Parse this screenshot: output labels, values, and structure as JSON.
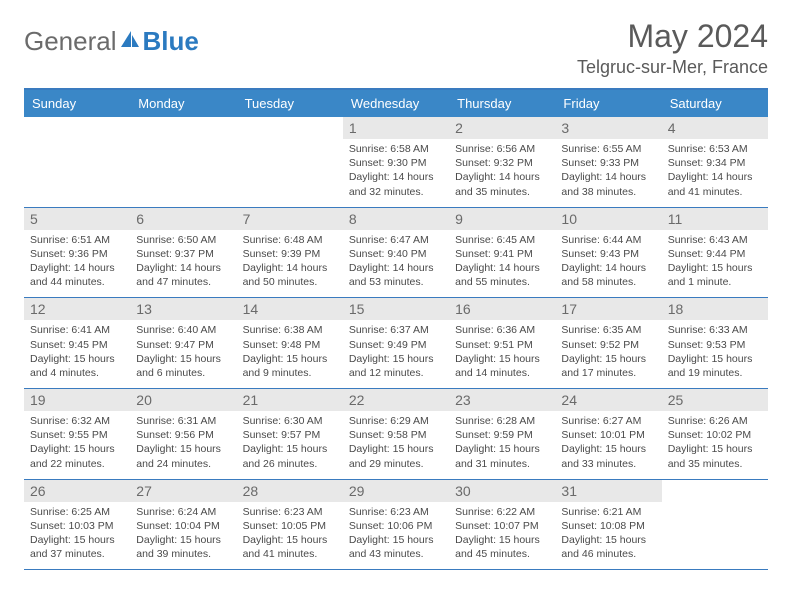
{
  "logo": {
    "text1": "General",
    "text2": "Blue"
  },
  "title": {
    "month": "May 2024",
    "location": "Telgruc-sur-Mer, France"
  },
  "colors": {
    "header_bg": "#3a87c7",
    "header_text": "#ffffff",
    "rule": "#3a7bbf",
    "daynum_bg": "#e8e8e8",
    "text": "#4a4a4a",
    "logo_gray": "#6b6b6b",
    "logo_blue": "#2b7ac0"
  },
  "layout": {
    "cols": 7,
    "rows": 5,
    "cell_min_height": 88,
    "font_info": 10.5,
    "font_daynum": 14
  },
  "day_names": [
    "Sunday",
    "Monday",
    "Tuesday",
    "Wednesday",
    "Thursday",
    "Friday",
    "Saturday"
  ],
  "weeks": [
    [
      {
        "n": "",
        "sr": "",
        "ss": "",
        "dl": ""
      },
      {
        "n": "",
        "sr": "",
        "ss": "",
        "dl": ""
      },
      {
        "n": "",
        "sr": "",
        "ss": "",
        "dl": ""
      },
      {
        "n": "1",
        "sr": "Sunrise: 6:58 AM",
        "ss": "Sunset: 9:30 PM",
        "dl": "Daylight: 14 hours and 32 minutes."
      },
      {
        "n": "2",
        "sr": "Sunrise: 6:56 AM",
        "ss": "Sunset: 9:32 PM",
        "dl": "Daylight: 14 hours and 35 minutes."
      },
      {
        "n": "3",
        "sr": "Sunrise: 6:55 AM",
        "ss": "Sunset: 9:33 PM",
        "dl": "Daylight: 14 hours and 38 minutes."
      },
      {
        "n": "4",
        "sr": "Sunrise: 6:53 AM",
        "ss": "Sunset: 9:34 PM",
        "dl": "Daylight: 14 hours and 41 minutes."
      }
    ],
    [
      {
        "n": "5",
        "sr": "Sunrise: 6:51 AM",
        "ss": "Sunset: 9:36 PM",
        "dl": "Daylight: 14 hours and 44 minutes."
      },
      {
        "n": "6",
        "sr": "Sunrise: 6:50 AM",
        "ss": "Sunset: 9:37 PM",
        "dl": "Daylight: 14 hours and 47 minutes."
      },
      {
        "n": "7",
        "sr": "Sunrise: 6:48 AM",
        "ss": "Sunset: 9:39 PM",
        "dl": "Daylight: 14 hours and 50 minutes."
      },
      {
        "n": "8",
        "sr": "Sunrise: 6:47 AM",
        "ss": "Sunset: 9:40 PM",
        "dl": "Daylight: 14 hours and 53 minutes."
      },
      {
        "n": "9",
        "sr": "Sunrise: 6:45 AM",
        "ss": "Sunset: 9:41 PM",
        "dl": "Daylight: 14 hours and 55 minutes."
      },
      {
        "n": "10",
        "sr": "Sunrise: 6:44 AM",
        "ss": "Sunset: 9:43 PM",
        "dl": "Daylight: 14 hours and 58 minutes."
      },
      {
        "n": "11",
        "sr": "Sunrise: 6:43 AM",
        "ss": "Sunset: 9:44 PM",
        "dl": "Daylight: 15 hours and 1 minute."
      }
    ],
    [
      {
        "n": "12",
        "sr": "Sunrise: 6:41 AM",
        "ss": "Sunset: 9:45 PM",
        "dl": "Daylight: 15 hours and 4 minutes."
      },
      {
        "n": "13",
        "sr": "Sunrise: 6:40 AM",
        "ss": "Sunset: 9:47 PM",
        "dl": "Daylight: 15 hours and 6 minutes."
      },
      {
        "n": "14",
        "sr": "Sunrise: 6:38 AM",
        "ss": "Sunset: 9:48 PM",
        "dl": "Daylight: 15 hours and 9 minutes."
      },
      {
        "n": "15",
        "sr": "Sunrise: 6:37 AM",
        "ss": "Sunset: 9:49 PM",
        "dl": "Daylight: 15 hours and 12 minutes."
      },
      {
        "n": "16",
        "sr": "Sunrise: 6:36 AM",
        "ss": "Sunset: 9:51 PM",
        "dl": "Daylight: 15 hours and 14 minutes."
      },
      {
        "n": "17",
        "sr": "Sunrise: 6:35 AM",
        "ss": "Sunset: 9:52 PM",
        "dl": "Daylight: 15 hours and 17 minutes."
      },
      {
        "n": "18",
        "sr": "Sunrise: 6:33 AM",
        "ss": "Sunset: 9:53 PM",
        "dl": "Daylight: 15 hours and 19 minutes."
      }
    ],
    [
      {
        "n": "19",
        "sr": "Sunrise: 6:32 AM",
        "ss": "Sunset: 9:55 PM",
        "dl": "Daylight: 15 hours and 22 minutes."
      },
      {
        "n": "20",
        "sr": "Sunrise: 6:31 AM",
        "ss": "Sunset: 9:56 PM",
        "dl": "Daylight: 15 hours and 24 minutes."
      },
      {
        "n": "21",
        "sr": "Sunrise: 6:30 AM",
        "ss": "Sunset: 9:57 PM",
        "dl": "Daylight: 15 hours and 26 minutes."
      },
      {
        "n": "22",
        "sr": "Sunrise: 6:29 AM",
        "ss": "Sunset: 9:58 PM",
        "dl": "Daylight: 15 hours and 29 minutes."
      },
      {
        "n": "23",
        "sr": "Sunrise: 6:28 AM",
        "ss": "Sunset: 9:59 PM",
        "dl": "Daylight: 15 hours and 31 minutes."
      },
      {
        "n": "24",
        "sr": "Sunrise: 6:27 AM",
        "ss": "Sunset: 10:01 PM",
        "dl": "Daylight: 15 hours and 33 minutes."
      },
      {
        "n": "25",
        "sr": "Sunrise: 6:26 AM",
        "ss": "Sunset: 10:02 PM",
        "dl": "Daylight: 15 hours and 35 minutes."
      }
    ],
    [
      {
        "n": "26",
        "sr": "Sunrise: 6:25 AM",
        "ss": "Sunset: 10:03 PM",
        "dl": "Daylight: 15 hours and 37 minutes."
      },
      {
        "n": "27",
        "sr": "Sunrise: 6:24 AM",
        "ss": "Sunset: 10:04 PM",
        "dl": "Daylight: 15 hours and 39 minutes."
      },
      {
        "n": "28",
        "sr": "Sunrise: 6:23 AM",
        "ss": "Sunset: 10:05 PM",
        "dl": "Daylight: 15 hours and 41 minutes."
      },
      {
        "n": "29",
        "sr": "Sunrise: 6:23 AM",
        "ss": "Sunset: 10:06 PM",
        "dl": "Daylight: 15 hours and 43 minutes."
      },
      {
        "n": "30",
        "sr": "Sunrise: 6:22 AM",
        "ss": "Sunset: 10:07 PM",
        "dl": "Daylight: 15 hours and 45 minutes."
      },
      {
        "n": "31",
        "sr": "Sunrise: 6:21 AM",
        "ss": "Sunset: 10:08 PM",
        "dl": "Daylight: 15 hours and 46 minutes."
      },
      {
        "n": "",
        "sr": "",
        "ss": "",
        "dl": ""
      }
    ]
  ]
}
